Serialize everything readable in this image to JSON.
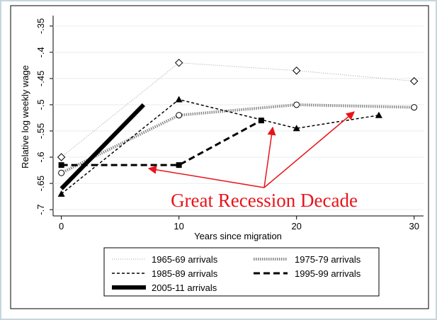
{
  "chart_data": {
    "type": "line",
    "y_label": "Relative log weekly wage",
    "x_label": "Years since migration",
    "annotation": "Great Recession Decade",
    "xlim": [
      -0.7,
      30.8
    ],
    "xticks": [
      0,
      10,
      20,
      30
    ],
    "ylim": [
      -0.712,
      -0.33
    ],
    "yticks": [
      {
        "value": -0.35,
        "label": "-.35"
      },
      {
        "value": -0.4,
        "label": "-.4"
      },
      {
        "value": -0.45,
        "label": "-.45"
      },
      {
        "value": -0.5,
        "label": "-.5"
      },
      {
        "value": -0.55,
        "label": "-.55"
      },
      {
        "value": -0.6,
        "label": "-.6"
      },
      {
        "value": -0.65,
        "label": "-.65"
      },
      {
        "value": -0.7,
        "label": "-.7"
      }
    ],
    "grid": true,
    "series": [
      {
        "name": "1965-69 arrivals",
        "color": "#a0a0a0",
        "width": 1,
        "dash": "1,2",
        "marker": "diamond",
        "x": [
          0,
          10,
          20,
          30
        ],
        "values": [
          -0.6,
          -0.42,
          -0.435,
          -0.455
        ]
      },
      {
        "name": "1975-79 arrivals",
        "color": "#8a8a8a",
        "width": 4,
        "dash": "1.5,1.5",
        "marker": "circle",
        "x": [
          0,
          10,
          20,
          30
        ],
        "values": [
          -0.63,
          -0.52,
          -0.5,
          -0.505
        ]
      },
      {
        "name": "1985-89 arrivals",
        "color": "#000000",
        "width": 1.5,
        "dash": "4,3",
        "marker": "triangle",
        "x": [
          0,
          10,
          20,
          27
        ],
        "values": [
          -0.67,
          -0.49,
          -0.545,
          -0.52
        ]
      },
      {
        "name": "1995-99 arrivals",
        "color": "#000000",
        "width": 3,
        "dash": "9,5",
        "marker": "square",
        "x": [
          0,
          10,
          17
        ],
        "values": [
          -0.615,
          -0.615,
          -0.53
        ]
      },
      {
        "name": "2005-11 arrivals",
        "color": "#000000",
        "width": 6,
        "dash": "none",
        "marker": "none",
        "x": [
          0,
          7
        ],
        "values": [
          -0.66,
          -0.5
        ]
      }
    ]
  }
}
